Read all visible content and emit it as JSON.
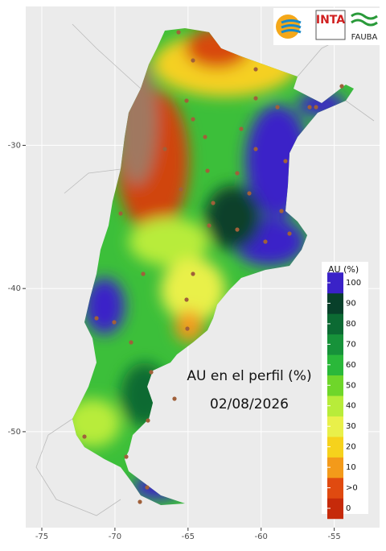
{
  "chart_data": {
    "type": "map",
    "xlim": [
      -76.1,
      -51.9
    ],
    "ylim": [
      -56.7,
      -20.3
    ],
    "xticks": [
      -75,
      -70,
      -65,
      -60,
      -55
    ],
    "yticks": [
      -50,
      -40,
      -30
    ],
    "grid": true,
    "annotations": [
      "AU en el perfil (%)",
      "02/08/2026"
    ],
    "logos": [
      "INTA",
      "FAUBA"
    ],
    "legend": {
      "title": "AU (%)",
      "ticks": [
        0,
        ">0",
        10,
        20,
        30,
        40,
        50,
        60,
        70,
        80,
        90,
        100
      ],
      "colors": [
        "#c62a0a",
        "#e04a10",
        "#f39a1a",
        "#f6d21c",
        "#e9f04a",
        "#b8ec3a",
        "#6fd62a",
        "#2ab83a",
        "#17923a",
        "#0c6a33",
        "#08402a",
        "#3a22c8"
      ]
    }
  }
}
